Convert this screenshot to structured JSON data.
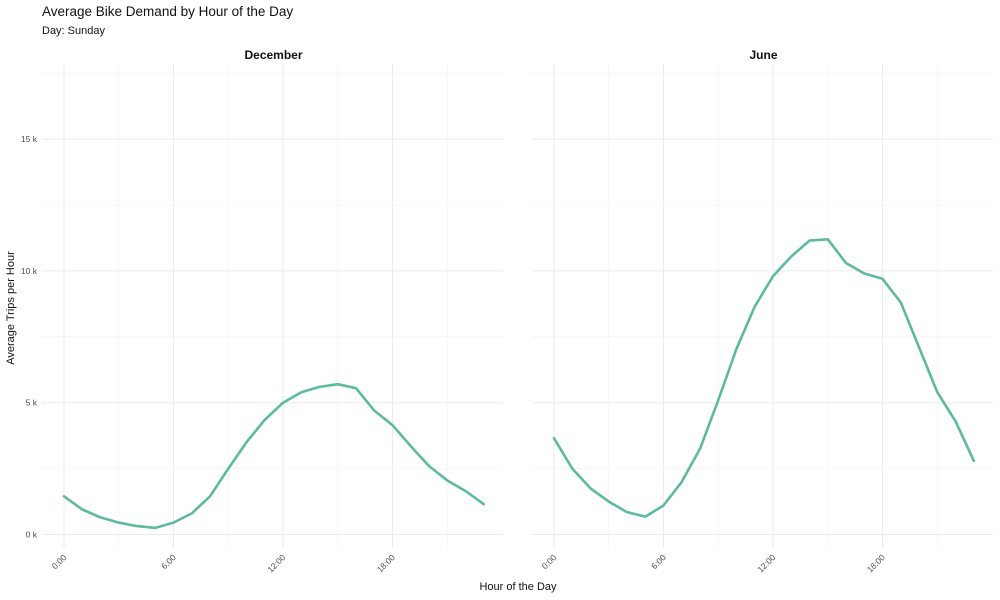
{
  "title": "Average Bike Demand by Hour of the Day",
  "subtitle": "Day: Sunday",
  "xlabel": "Hour of the Day",
  "ylabel": "Average Trips per Hour",
  "line_color": "#5dbb9c",
  "chart_data": {
    "type": "line",
    "facets": [
      "December",
      "June"
    ],
    "x": [
      0,
      1,
      2,
      3,
      4,
      5,
      6,
      7,
      8,
      9,
      10,
      11,
      12,
      13,
      14,
      15,
      16,
      17,
      18,
      19,
      20,
      21,
      22,
      23
    ],
    "x_ticks": [
      0,
      6,
      12,
      18
    ],
    "x_tick_labels": [
      "0:00",
      "6:00",
      "12:00",
      "18:00"
    ],
    "y_ticks": [
      0,
      5000,
      10000,
      15000
    ],
    "y_tick_labels": [
      "0 k",
      "5 k",
      "10 k",
      "15 k"
    ],
    "xlim": [
      -0.5,
      24
    ],
    "ylim": [
      0,
      17500
    ],
    "grid": true,
    "series": [
      {
        "facet": "December",
        "values": [
          1450,
          950,
          650,
          450,
          320,
          250,
          450,
          800,
          1450,
          2500,
          3500,
          4350,
          5000,
          5400,
          5600,
          5700,
          5550,
          4700,
          4150,
          3350,
          2600,
          2050,
          1650,
          1150
        ]
      },
      {
        "facet": "June",
        "values": [
          3650,
          2500,
          1750,
          1250,
          850,
          680,
          1100,
          2000,
          3250,
          5100,
          7050,
          8650,
          9800,
          10550,
          11150,
          11200,
          10300,
          9900,
          9700,
          8800,
          7100,
          5400,
          4300,
          2800
        ]
      }
    ]
  }
}
